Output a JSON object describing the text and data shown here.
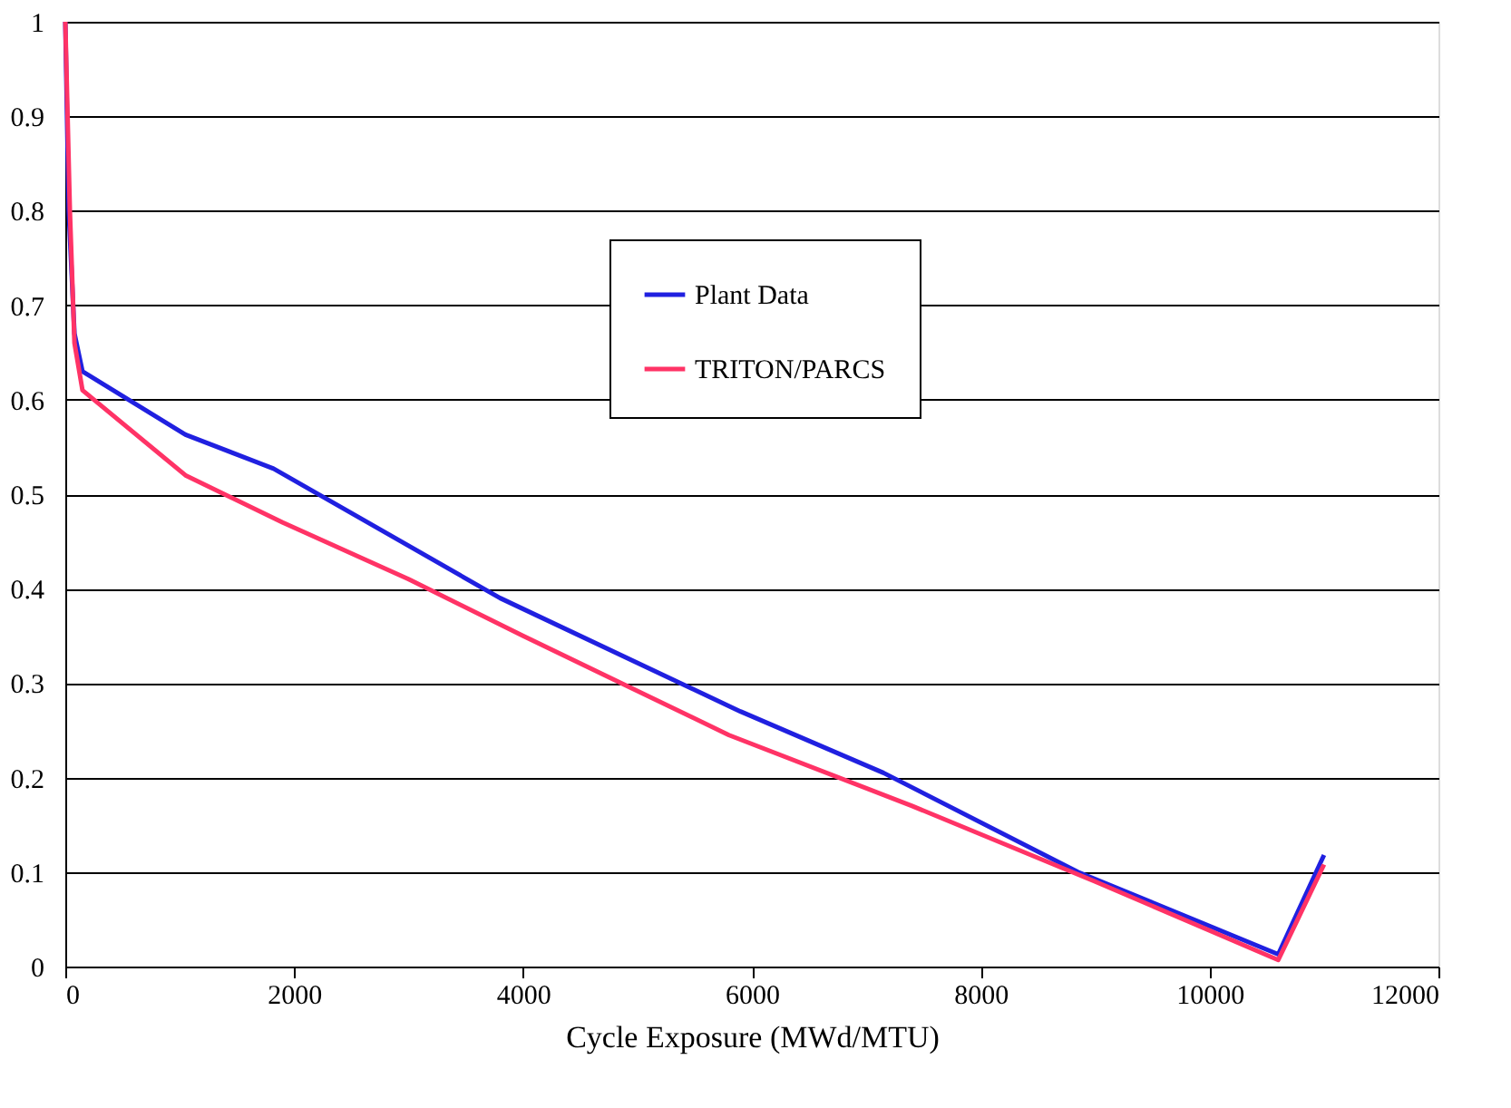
{
  "chart_data": {
    "type": "line",
    "xlabel": "Cycle Exposure (MWd/MTU)",
    "xlim": [
      0,
      12000
    ],
    "xticks": [
      0,
      2000,
      4000,
      6000,
      8000,
      10000,
      12000
    ],
    "ylim": [
      0,
      1
    ],
    "yticks": [
      0,
      0.1,
      0.2,
      0.3,
      0.4,
      0.5,
      0.6,
      0.7,
      0.8,
      0.9,
      1
    ],
    "grid": "y",
    "legend": "top",
    "marker": "none",
    "line_style": "solid",
    "series": [
      {
        "name": "Plant Data",
        "color": "#2020e0",
        "x": [
          0,
          30,
          80,
          150,
          1050,
          1820,
          3800,
          5900,
          7150,
          8850,
          10600,
          11000
        ],
        "values": [
          1,
          0.8,
          0.67,
          0.63,
          0.563,
          0.527,
          0.39,
          0.27,
          0.205,
          0.1,
          0.013,
          0.118
        ]
      },
      {
        "name": "TRITON/PARCS",
        "color": "#ff3366",
        "x": [
          0,
          40,
          80,
          150,
          1050,
          1900,
          3000,
          4000,
          5800,
          7400,
          9000,
          10600,
          11000
        ],
        "values": [
          1,
          0.8,
          0.66,
          0.61,
          0.52,
          0.47,
          0.41,
          0.35,
          0.245,
          0.17,
          0.09,
          0.007,
          0.108
        ]
      }
    ]
  }
}
